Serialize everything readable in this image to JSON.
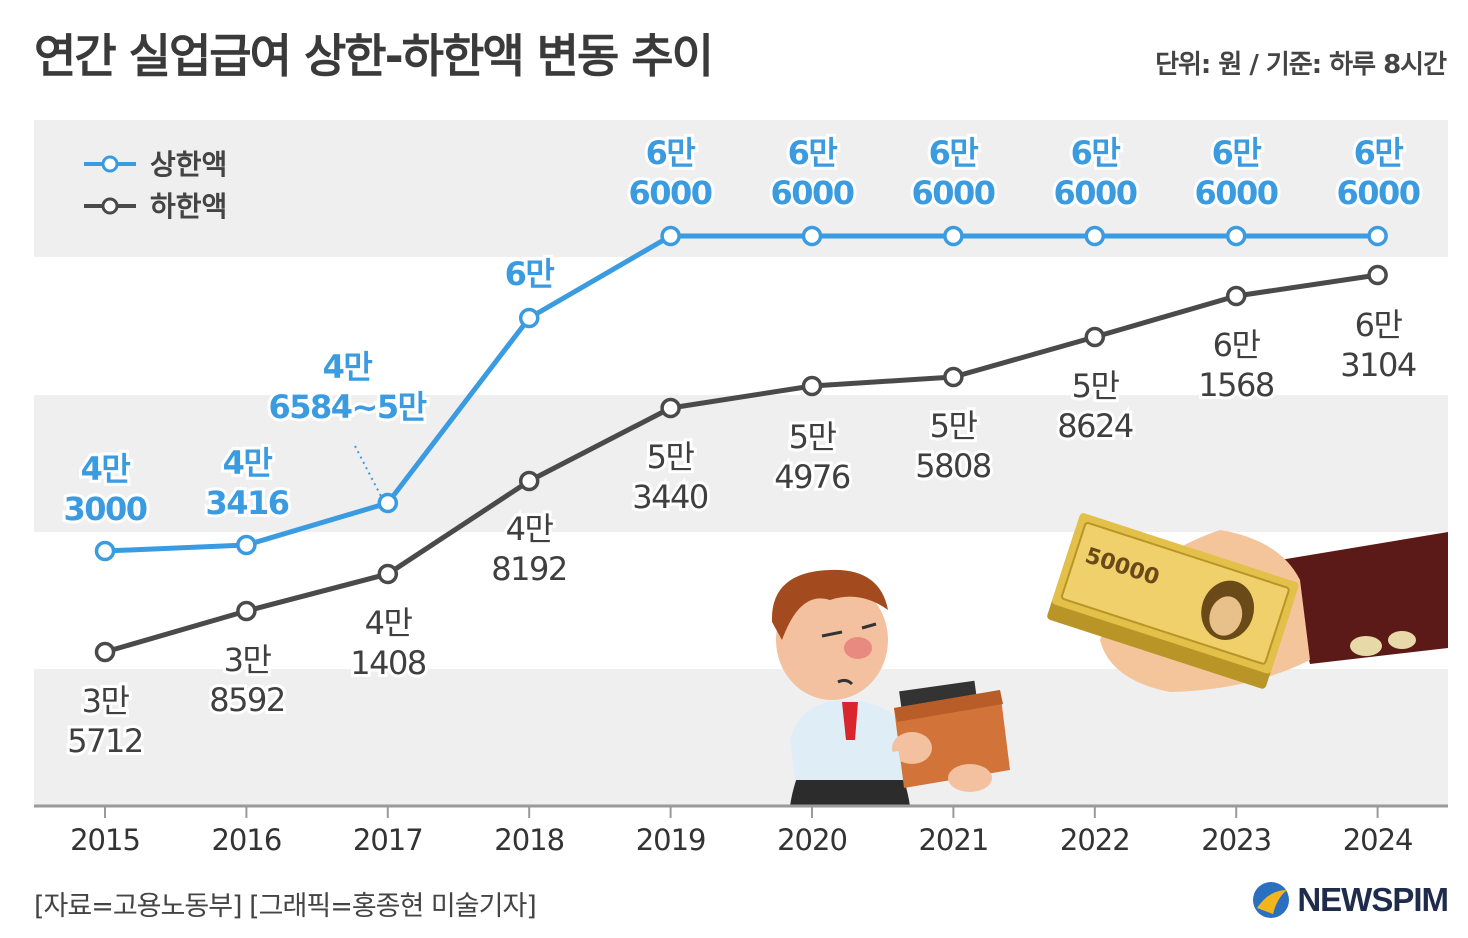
{
  "title": "연간 실업급여 상한-하한액 변동 추이",
  "unit_note": "단위: 원 / 기준: 하루 8시간",
  "source": "[자료=고용노동부] [그래픽=홍종현 미술기자]",
  "logo": "NEWSPIM",
  "colors": {
    "upper": "#3a9be0",
    "lower": "#4a4a4a",
    "band": "#efefef"
  },
  "chart_data": {
    "type": "line",
    "title": "연간 실업급여 상한-하한액 변동 추이",
    "x": [
      "2015",
      "2016",
      "2017",
      "2018",
      "2019",
      "2020",
      "2021",
      "2022",
      "2023",
      "2024"
    ],
    "ylabel": "원",
    "ylim": [
      30000,
      70000
    ],
    "legend_position": "top-left",
    "series": [
      {
        "name": "상한액",
        "values": [
          43000,
          43416,
          46584,
          60000,
          66000,
          66000,
          66000,
          66000,
          66000,
          66000
        ],
        "labels": [
          [
            "4만",
            "3000"
          ],
          [
            "4만",
            "3416"
          ],
          [
            "4만",
            "6584~5만"
          ],
          [
            "6만"
          ],
          [
            "6만",
            "6000"
          ],
          [
            "6만",
            "6000"
          ],
          [
            "6만",
            "6000"
          ],
          [
            "6만",
            "6000"
          ],
          [
            "6만",
            "6000"
          ],
          [
            "6만",
            "6000"
          ]
        ]
      },
      {
        "name": "하한액",
        "values": [
          35712,
          38592,
          41408,
          48192,
          53440,
          54976,
          55808,
          58624,
          61568,
          63104
        ],
        "labels": [
          [
            "3만",
            "5712"
          ],
          [
            "3만",
            "8592"
          ],
          [
            "4만",
            "1408"
          ],
          [
            "4만",
            "8192"
          ],
          [
            "5만",
            "3440"
          ],
          [
            "5만",
            "4976"
          ],
          [
            "5만",
            "5808"
          ],
          [
            "5만",
            "8624"
          ],
          [
            "6만",
            "1568"
          ],
          [
            "6만",
            "3104"
          ]
        ]
      }
    ]
  },
  "illustration": {
    "banknote_text": "50000"
  }
}
